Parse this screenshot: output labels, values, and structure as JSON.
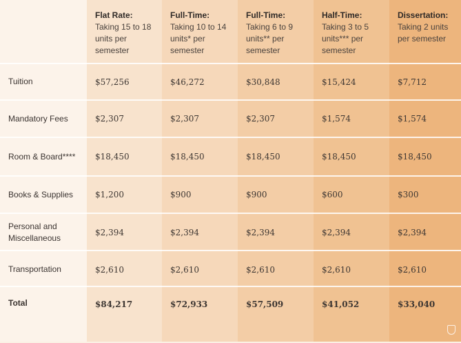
{
  "header": {
    "columns": [
      {
        "title": "Flat Rate:",
        "subtitle": "Taking 15 to 18 units per semester"
      },
      {
        "title": "Full-Time:",
        "subtitle": "Taking 10 to 14 units* per semester"
      },
      {
        "title": "Full-Time:",
        "subtitle": "Taking 6 to 9 units** per semester"
      },
      {
        "title": "Half-Time:",
        "subtitle": "Taking 3 to 5 units*** per semester"
      },
      {
        "title": "Dissertation:",
        "subtitle": "Taking 2 units per semester"
      }
    ]
  },
  "rows": [
    {
      "label": "Tuition",
      "values": [
        "$57,256",
        "$46,272",
        "$30,848",
        "$15,424",
        "$7,712"
      ]
    },
    {
      "label": "Mandatory Fees",
      "values": [
        "$2,307",
        "$2,307",
        "$2,307",
        "$1,574",
        "$1,574"
      ]
    },
    {
      "label": "Room & Board****",
      "values": [
        "$18,450",
        "$18,450",
        "$18,450",
        "$18,450",
        "$18,450"
      ]
    },
    {
      "label": "Books & Supplies",
      "values": [
        "$1,200",
        "$900",
        "$900",
        "$600",
        "$300"
      ]
    },
    {
      "label": "Personal and Miscellaneous",
      "values": [
        "$2,394",
        "$2,394",
        "$2,394",
        "$2,394",
        "$2,394"
      ]
    },
    {
      "label": "Transportation",
      "values": [
        "$2,610",
        "$2,610",
        "$2,610",
        "$2,610",
        "$2,610"
      ]
    },
    {
      "label": "Total",
      "values": [
        "$84,217",
        "$72,933",
        "$57,509",
        "$41,052",
        "$33,040"
      ]
    }
  ],
  "colors": {
    "col_backgrounds": [
      "#fcf3ea",
      "#f8e3cd",
      "#f6d8ba",
      "#f3cda6",
      "#f0c292",
      "#edb57d"
    ],
    "divider": "#ffffff",
    "text": "#3a3330"
  },
  "watermark_icon": "school-logo-icon"
}
